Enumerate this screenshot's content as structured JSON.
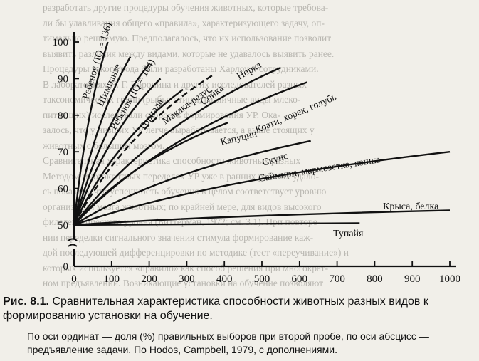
{
  "background_text": [
    "разработать другие процедуры обучения животных, которые требова-",
    "ли бы улавливания общего «правила», характеризующего задачу, оп-",
    "тимально решаемую. Предполагалось, что их использование позволит",
    "выявить различия между видами, которые не удавалось выявить ранее.",
    "Процедуры такого рода были разработаны Харлоу и сотрудниками.",
    "В лабораториях Н. Г. Воронина и других исследователей разных",
    "таксономических групп (рыбы, птицы, различные виды млеко-",
    "питающих) исследовали скорость формирования УР. Ока-",
    "залось, что у низших УР легче вырабатывается, а выше стоящих у",
    "животных с большим мозгом.",
    "Сравнительная характеристика способности животных разных",
    "Методом многократных переделок УР уже в ранних работах удало-",
    "сь показать, что успешность обучения в целом соответствует уровню",
    "организации мозга животных; по крайней мере, для видов высокого",
    "филогенетического уровня (Биттерман, 1972; см. 3.1). При повторе-",
    "нии переделки сигнального значения стимула формирование каж-",
    "дой последующей дифференцировки по методике (тест «переучивание») и",
    "которых используется «правило» как способ решения при многократ-",
    "ном предъявлении. Возникающие установки на обучение позволяют"
  ],
  "chart_data": {
    "type": "line",
    "xlim": [
      0,
      1000
    ],
    "ylim": [
      50,
      100
    ],
    "x_ticks": [
      0,
      100,
      200,
      300,
      400,
      500,
      600,
      700,
      800,
      900,
      1000
    ],
    "y_ticks": [
      50,
      60,
      70,
      80,
      90,
      100
    ],
    "axis_break_label": "0",
    "series": [
      {
        "name": "Ребенок (IQ = 136)",
        "points": [
          [
            0,
            50
          ],
          [
            90,
            100
          ]
        ]
      },
      {
        "name": "Шимпанзе",
        "points": [
          [
            0,
            50
          ],
          [
            150,
            96
          ]
        ]
      },
      {
        "name": "Ребенок (IQ = 104)",
        "points": [
          [
            0,
            50
          ],
          [
            200,
            94
          ]
        ]
      },
      {
        "name": "Горилла",
        "points": [
          [
            0,
            50
          ],
          [
            230,
            90
          ]
        ]
      },
      {
        "name": "Макака-резус",
        "points": [
          [
            0,
            50
          ],
          [
            290,
            87
          ]
        ]
      },
      {
        "name": "Сойка",
        "points": [
          [
            0,
            50
          ],
          [
            370,
            91
          ]
        ],
        "dashed": true
      },
      {
        "name": "Норка",
        "points": [
          [
            0,
            50
          ],
          [
            550,
            93
          ]
        ]
      },
      {
        "name": "Коати, хорек, голубь",
        "points": [
          [
            0,
            50
          ],
          [
            620,
            89
          ]
        ]
      },
      {
        "name": "Капуцин",
        "points": [
          [
            0,
            50
          ],
          [
            410,
            78
          ]
        ]
      },
      {
        "name": "Скунс",
        "points": [
          [
            0,
            50
          ],
          [
            630,
            73
          ]
        ]
      },
      {
        "name": "Саймири, мармозетка, кошка",
        "points": [
          [
            0,
            50
          ],
          [
            1000,
            70
          ]
        ]
      },
      {
        "name": "Крыса, белка",
        "points": [
          [
            0,
            50
          ],
          [
            1000,
            54
          ]
        ]
      },
      {
        "name": "Тупайя",
        "points": [
          [
            0,
            50
          ],
          [
            760,
            50.5
          ]
        ]
      }
    ]
  },
  "caption": {
    "figure_number": "Рис. 8.1.",
    "text": "Сравнительная характеристика способности животных разных видов к формированию установки на обучение."
  },
  "note": "По оси ординат — доля (%) правильных выборов при второй пробе, по оси абсцисс — предъявление задачи. По Hodos, Campbell, 1979, с дополнениями."
}
